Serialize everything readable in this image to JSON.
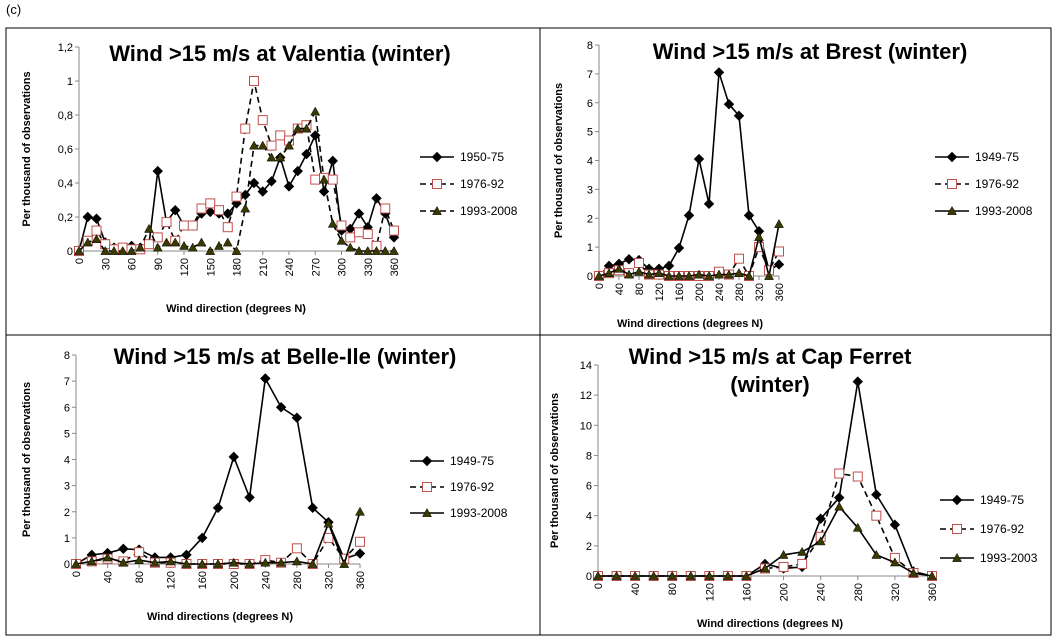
{
  "label": "(c)",
  "chart_data": [
    {
      "type": "line",
      "title": "Wind >15 m/s at Valentia (winter)",
      "x_label": "Wind direction (degrees N)",
      "y_label": "Per thousand of observations",
      "x": [
        0,
        10,
        20,
        30,
        40,
        50,
        60,
        70,
        80,
        90,
        100,
        110,
        120,
        130,
        140,
        150,
        160,
        170,
        180,
        190,
        200,
        210,
        220,
        230,
        240,
        250,
        260,
        270,
        280,
        290,
        300,
        310,
        320,
        330,
        340,
        350,
        360
      ],
      "xlim": [
        0,
        360
      ],
      "xticks": [
        0,
        30,
        60,
        90,
        120,
        150,
        180,
        210,
        240,
        270,
        300,
        330,
        360
      ],
      "ylim": [
        0,
        1.2
      ],
      "yticks": [
        0,
        {
          "value": 0.2,
          "label": "0,2"
        },
        {
          "value": 0.4,
          "label": "0,4"
        },
        {
          "value": 0.6,
          "label": "0,6"
        },
        {
          "value": 0.8,
          "label": "0,8"
        },
        1,
        {
          "value": 1.2,
          "label": "1,2"
        }
      ],
      "series": [
        {
          "name": "1950-75",
          "color": "#000000",
          "marker": "diamond",
          "dash": false,
          "values": [
            0,
            0.2,
            0.19,
            0.05,
            0.02,
            0.01,
            0.03,
            0.02,
            0.04,
            0.47,
            0.17,
            0.24,
            0.15,
            0.15,
            0.22,
            0.23,
            0.22,
            0.22,
            0.28,
            0.33,
            0.4,
            0.35,
            0.41,
            0.55,
            0.38,
            0.47,
            0.57,
            0.68,
            0.35,
            0.53,
            0.12,
            0.13,
            0.22,
            0.14,
            0.31,
            0.22,
            0.08
          ]
        },
        {
          "name": "1976-92",
          "color": "#c0504d",
          "marker": "square",
          "dash": true,
          "values": [
            0,
            0.06,
            0.12,
            0.04,
            0.01,
            0.02,
            0.01,
            0.01,
            0.04,
            0.08,
            0.17,
            0.06,
            0.15,
            0.15,
            0.25,
            0.28,
            0.24,
            0.14,
            0.32,
            0.72,
            1.0,
            0.77,
            0.62,
            0.68,
            0.65,
            0.72,
            0.74,
            0.42,
            0.43,
            0.42,
            0.15,
            0.08,
            0.11,
            0.1,
            0.03,
            0.25,
            0.12
          ]
        },
        {
          "name": "1993-2008",
          "color": "#3a3a00",
          "marker": "triangle",
          "dash": true,
          "values": [
            0,
            0.05,
            0.07,
            0,
            0,
            0,
            0,
            0.02,
            0.13,
            0.02,
            0.05,
            0.05,
            0.03,
            0.02,
            0.05,
            0,
            0.03,
            0.05,
            0,
            0.25,
            0.62,
            0.62,
            0.55,
            0.55,
            0.62,
            0.72,
            0.72,
            0.82,
            0.42,
            0.16,
            0.06,
            0.02,
            0,
            0,
            0,
            0,
            0
          ]
        }
      ]
    },
    {
      "type": "line",
      "title": "Wind >15 m/s at Brest (winter)",
      "x_label": "Wind directions (degrees N)",
      "y_label": "Per thousand of observations",
      "x": [
        0,
        20,
        40,
        60,
        80,
        100,
        120,
        140,
        160,
        180,
        200,
        220,
        240,
        260,
        280,
        300,
        320,
        340,
        360
      ],
      "xlim": [
        0,
        360
      ],
      "xticks": [
        0,
        40,
        80,
        120,
        160,
        200,
        240,
        280,
        320,
        360
      ],
      "ylim": [
        0,
        8
      ],
      "yticks": [
        0,
        1,
        2,
        3,
        4,
        5,
        6,
        7,
        8
      ],
      "series": [
        {
          "name": "1949-75",
          "color": "#000000",
          "marker": "diamond",
          "dash": false,
          "values": [
            0,
            0.35,
            0.42,
            0.58,
            0.55,
            0.25,
            0.25,
            0.35,
            0.97,
            2.1,
            4.05,
            2.5,
            7.05,
            5.95,
            5.55,
            2.1,
            1.55,
            0.2,
            0.4
          ]
        },
        {
          "name": "1976-92",
          "color": "#c0504d",
          "marker": "square",
          "dash": true,
          "values": [
            0,
            0.1,
            0.2,
            0.1,
            0.45,
            0.05,
            0.05,
            0,
            0,
            0,
            0,
            0,
            0.15,
            0.05,
            0.6,
            0,
            1.0,
            0.2,
            0.85
          ]
        },
        {
          "name": "1993-2008",
          "color": "#3a3a00",
          "marker": "triangle",
          "dash": false,
          "values": [
            0,
            0.1,
            0.25,
            0.05,
            0.15,
            0.05,
            0.1,
            0,
            0,
            0,
            0.05,
            0,
            0.05,
            0.05,
            0.1,
            0,
            1.35,
            0,
            1.8
          ]
        }
      ]
    },
    {
      "type": "line",
      "title": "Wind >15 m/s at Belle-Ile (winter)",
      "x_label": "Wind directions (degrees N)",
      "y_label": "Per thousand of observations",
      "x": [
        0,
        20,
        40,
        60,
        80,
        100,
        120,
        140,
        160,
        180,
        200,
        220,
        240,
        260,
        280,
        300,
        320,
        340,
        360
      ],
      "xlim": [
        0,
        360
      ],
      "xticks": [
        0,
        40,
        80,
        120,
        160,
        200,
        240,
        280,
        320,
        360
      ],
      "ylim": [
        0,
        8
      ],
      "yticks": [
        0,
        1,
        2,
        3,
        4,
        5,
        6,
        7,
        8
      ],
      "series": [
        {
          "name": "1949-75",
          "color": "#000000",
          "marker": "diamond",
          "dash": false,
          "values": [
            0,
            0.35,
            0.42,
            0.58,
            0.55,
            0.25,
            0.25,
            0.35,
            1.0,
            2.15,
            4.1,
            2.55,
            7.1,
            6.0,
            5.6,
            2.15,
            1.6,
            0.2,
            0.4
          ]
        },
        {
          "name": "1976-92",
          "color": "#c0504d",
          "marker": "square",
          "dash": true,
          "values": [
            0,
            0.1,
            0.2,
            0.1,
            0.45,
            0.05,
            0.05,
            0,
            0,
            0,
            0,
            0,
            0.15,
            0.05,
            0.6,
            0,
            1.0,
            0.2,
            0.85
          ]
        },
        {
          "name": "1993-2008",
          "color": "#3a3a00",
          "marker": "triangle",
          "dash": false,
          "values": [
            0,
            0.1,
            0.25,
            0.05,
            0.15,
            0.05,
            0.1,
            0,
            0,
            0,
            0.05,
            0,
            0.05,
            0.05,
            0.1,
            0,
            1.55,
            0,
            2.0
          ]
        }
      ]
    },
    {
      "type": "line",
      "title": "Wind >15 m/s at Cap Ferret (winter)",
      "x_label": "Wind directions (degrees N)",
      "y_label": "Per thousand of observations",
      "x": [
        0,
        20,
        40,
        60,
        80,
        100,
        120,
        140,
        160,
        180,
        200,
        220,
        240,
        260,
        280,
        300,
        320,
        340,
        360
      ],
      "xlim": [
        0,
        360
      ],
      "xticks": [
        0,
        40,
        80,
        120,
        160,
        200,
        240,
        280,
        320,
        360
      ],
      "ylim": [
        0,
        14
      ],
      "yticks": [
        0,
        2,
        4,
        6,
        8,
        10,
        12,
        14
      ],
      "series": [
        {
          "name": "1949-75",
          "color": "#000000",
          "marker": "diamond",
          "dash": false,
          "values": [
            0,
            0,
            0,
            0,
            0,
            0,
            0,
            0,
            0,
            0.8,
            0.5,
            0.6,
            3.8,
            5.2,
            12.9,
            5.4,
            3.4,
            0.3,
            0
          ]
        },
        {
          "name": "1976-92",
          "color": "#c0504d",
          "marker": "square",
          "dash": true,
          "values": [
            0,
            0,
            0,
            0,
            0,
            0,
            0,
            0,
            0,
            0.5,
            0.6,
            0.8,
            2.6,
            6.8,
            6.6,
            4.0,
            1.2,
            0.2,
            0
          ]
        },
        {
          "name": "1993-2003",
          "color": "#3a3a00",
          "marker": "triangle",
          "dash": false,
          "values": [
            0,
            0,
            0,
            0,
            0,
            0,
            0,
            0,
            0,
            0.5,
            1.4,
            1.6,
            2.3,
            4.6,
            3.2,
            1.4,
            0.9,
            0.2,
            0
          ]
        }
      ]
    }
  ]
}
